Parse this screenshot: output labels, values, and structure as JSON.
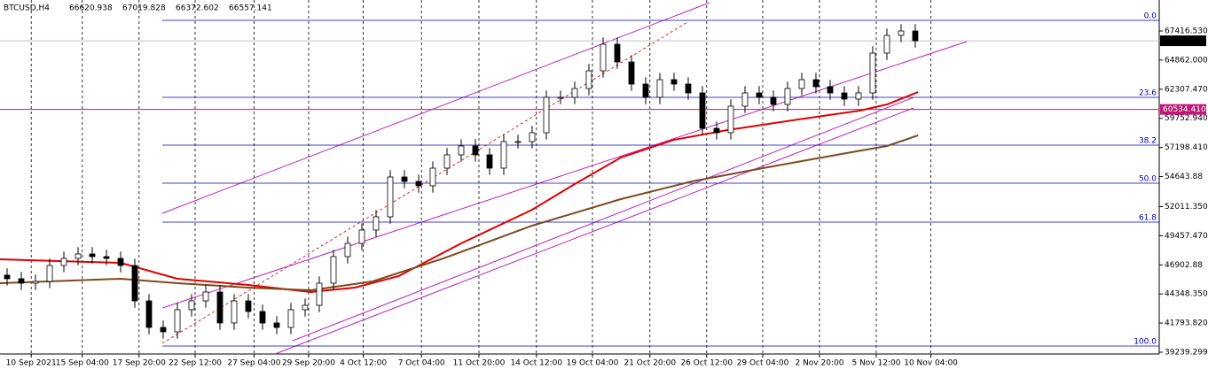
{
  "chart_data": {
    "type": "candlestick",
    "symbol": "BTCUSD,H4",
    "header_ohlc": [
      66620.938,
      67019.828,
      66372.602,
      66557.141
    ],
    "candles": {
      "color_up": "#ffffff",
      "color_down": "#000000",
      "open": [
        46000,
        45683,
        45295,
        45450,
        46847,
        47468,
        47856,
        47623,
        47468,
        46847,
        43742,
        41414,
        41026,
        42966,
        43742,
        44519,
        41802,
        43742,
        42811,
        41802,
        41414,
        42966,
        43355,
        45295,
        47623,
        48788,
        49952,
        51116,
        54609,
        54221,
        53833,
        55385,
        56550,
        57326,
        56550,
        55385,
        57714,
        57714,
        58490,
        61595,
        61595,
        62371,
        63923,
        66252,
        64699,
        62759,
        61595,
        63147,
        62759,
        61983,
        58878,
        58490,
        60819,
        61983,
        61595,
        60974,
        62371,
        63147,
        62526,
        61983,
        61440,
        61983,
        65476,
        67028,
        67416
      ],
      "high": [
        46600,
        46283,
        46050,
        47447,
        48068,
        48456,
        48456,
        48223,
        48068,
        47447,
        44342,
        42014,
        43566,
        44342,
        45119,
        45119,
        44342,
        44342,
        43411,
        42402,
        43566,
        43955,
        45895,
        48223,
        49388,
        50552,
        51716,
        55209,
        55209,
        54821,
        55985,
        57150,
        57926,
        57926,
        57150,
        58314,
        58314,
        59090,
        62195,
        62195,
        62971,
        64523,
        66852,
        66852,
        65299,
        63359,
        63747,
        63747,
        63359,
        62583,
        59478,
        61419,
        62583,
        62583,
        62195,
        62971,
        63747,
        63747,
        63126,
        62583,
        62583,
        66076,
        67628,
        68016,
        68016
      ],
      "low": [
        45083,
        44695,
        44695,
        44850,
        46247,
        46868,
        47023,
        46868,
        46247,
        43142,
        40814,
        40426,
        40426,
        42366,
        43142,
        41202,
        41202,
        42211,
        41202,
        40814,
        40814,
        42366,
        42755,
        44695,
        47023,
        48188,
        49352,
        50516,
        53621,
        53233,
        53233,
        54785,
        55950,
        55950,
        54785,
        54785,
        57114,
        57114,
        57890,
        60995,
        60995,
        61771,
        63323,
        64099,
        62159,
        60995,
        60995,
        62159,
        61383,
        58278,
        57890,
        57890,
        60219,
        60995,
        60374,
        60374,
        61771,
        61926,
        61383,
        60840,
        60840,
        61383,
        64876,
        66428,
        65957
      ],
      "close": [
        45683,
        45295,
        45450,
        46847,
        47468,
        47856,
        47623,
        47468,
        46847,
        43742,
        41414,
        41026,
        42966,
        43742,
        44519,
        41802,
        43742,
        42811,
        41802,
        41414,
        42966,
        43355,
        45295,
        47623,
        48788,
        49952,
        51116,
        54609,
        54221,
        53833,
        55385,
        56550,
        57326,
        56550,
        55385,
        57714,
        57714,
        58490,
        61595,
        61595,
        62371,
        63923,
        66252,
        64699,
        62759,
        61595,
        63147,
        62759,
        61983,
        58878,
        58490,
        60819,
        61983,
        61595,
        60974,
        62371,
        63147,
        62526,
        61983,
        61440,
        61983,
        65476,
        67028,
        67416,
        66557
      ]
    },
    "moving_averages": [
      {
        "color": "#e00000",
        "x": [
          -0.5,
          5.75,
          8,
          12,
          17,
          21.4,
          24.5,
          27.6,
          32,
          37,
          40,
          43.25,
          47,
          50.75,
          55.75,
          60.1,
          62,
          64.2
        ],
        "values": [
          47390,
          47157,
          47080,
          45683,
          45140,
          44519,
          44907,
          45916,
          48788,
          51738,
          53989,
          56317,
          57870,
          58723,
          59654,
          60431,
          60972,
          62060
        ]
      },
      {
        "color": "#7b4a1e",
        "x": [
          -0.5,
          8,
          12,
          17,
          21.4,
          25.75,
          30.75,
          37,
          43.25,
          48.25,
          53.25,
          59.5,
          62,
          64.2
        ],
        "values": [
          45295,
          45683,
          45295,
          44907,
          44674,
          45450,
          47468,
          50340,
          52668,
          54221,
          55385,
          56782,
          57326,
          58258
        ]
      }
    ],
    "fibonacci": {
      "color": "#0000b0",
      "levels": [
        {
          "value": 0,
          "label": "0.0"
        },
        23.6,
        38.2,
        {
          "value": 50,
          "label": "50.0"
        },
        61.8,
        {
          "value": 100,
          "label": "100.0"
        }
      ],
      "prices": [
        68348,
        61595,
        57404,
        54066,
        50651,
        39785
      ]
    },
    "price_lines": [
      {
        "value": 66557.141,
        "color": "#000000",
        "line": "#c0c0c0"
      },
      {
        "value": 60534.41,
        "label": "60534.410",
        "color": "#c0187a",
        "line": "#c0187a"
      }
    ],
    "xlim": [
      -0.5,
      81.19
    ],
    "xticks": [
      {
        "value": 1.7,
        "label": "10 Sep 2021"
      },
      {
        "value": 5.3,
        "label": "15 Sep 04:00"
      },
      {
        "value": 9.3,
        "label": "17 Sep 20:00"
      },
      {
        "value": 13.25,
        "label": "22 Sep 12:00"
      },
      {
        "value": 17.4,
        "label": "27 Sep 04:00"
      },
      {
        "value": 21.25,
        "label": "29 Sep 20:00"
      },
      {
        "value": 25.1,
        "label": "4 Oct 12:00"
      },
      {
        "value": 29.2,
        "label": "7 Oct 04:00"
      },
      {
        "value": 33.25,
        "label": "11 Oct 20:00"
      },
      {
        "value": 37.3,
        "label": "14 Oct 12:00"
      },
      {
        "value": 41.25,
        "label": "19 Oct 04:00"
      },
      {
        "value": 45.3,
        "label": "21 Oct 20:00"
      },
      {
        "value": 49.3,
        "label": "26 Oct 12:00"
      },
      {
        "value": 53.25,
        "label": "29 Oct 04:00"
      },
      {
        "value": 57.25,
        "label": "2 Nov 20:00"
      },
      {
        "value": 61.25,
        "label": "5 Nov 12:00"
      },
      {
        "value": 65.1,
        "label": "10 Nov 04:00"
      }
    ],
    "ylim": [
      39084,
      70133
    ],
    "yticks": [
      {
        "value": 67416.53,
        "label": "67416.530"
      },
      {
        "value": 64862,
        "label": "64862.000"
      },
      {
        "value": 62307.47,
        "label": "62307.470"
      },
      {
        "value": 59752.94,
        "label": "59752.940"
      },
      {
        "value": 57198.41,
        "label": "57198.410"
      },
      54643.88,
      {
        "value": 52011.35,
        "label": "52011.350"
      },
      {
        "value": 49457.47,
        "label": "49457.470"
      },
      46902.88,
      {
        "value": 44348.35,
        "label": "44348.350"
      },
      {
        "value": 41793.82,
        "label": "41793.820"
      },
      39239.299
    ],
    "grid": true
  }
}
